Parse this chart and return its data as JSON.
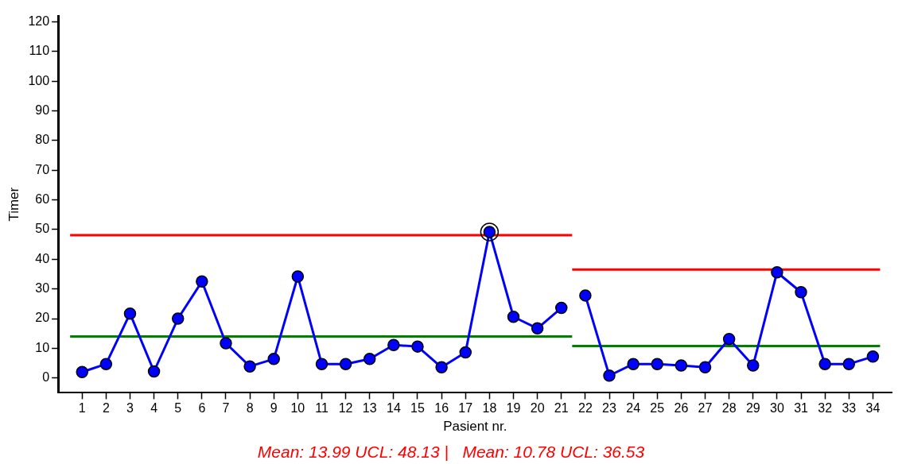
{
  "chart_data": {
    "type": "line",
    "xlabel": "Pasient nr.",
    "ylabel": "Timer",
    "xlim": [
      0,
      34.8
    ],
    "xticks": [
      1,
      2,
      3,
      4,
      5,
      6,
      7,
      8,
      9,
      10,
      11,
      12,
      13,
      14,
      15,
      16,
      17,
      18,
      19,
      20,
      21,
      22,
      23,
      24,
      25,
      26,
      27,
      28,
      29,
      30,
      31,
      32,
      33,
      34
    ],
    "ylim": [
      -5,
      122
    ],
    "yticks": [
      0,
      10,
      20,
      30,
      40,
      50,
      60,
      70,
      80,
      90,
      100,
      110,
      120
    ],
    "grid": false,
    "legend": false,
    "marker": "circle",
    "series": [
      {
        "color": "#0000ff",
        "x": [
          1,
          2,
          3,
          4,
          5,
          6,
          7,
          8,
          9,
          10,
          11,
          12,
          13,
          14,
          15,
          16,
          17,
          18,
          19,
          20,
          21
        ],
        "values": [
          2,
          4.7,
          21.7,
          2.2,
          20,
          32.5,
          11.7,
          3.9,
          6.4,
          34.2,
          4.7,
          4.7,
          6.4,
          11.1,
          10.6,
          3.6,
          8.6,
          49.2,
          20.6,
          16.7,
          23.6
        ]
      },
      {
        "color": "#0000ff",
        "x": [
          22,
          23,
          24,
          25,
          26,
          27,
          28,
          29,
          30,
          31,
          32,
          33,
          34
        ],
        "values": [
          27.8,
          0.8,
          4.7,
          4.7,
          4.2,
          3.6,
          13.1,
          4.2,
          35.6,
          28.9,
          4.7,
          4.7,
          7.2
        ]
      },
      {
        "type": "line",
        "color": "#ff0000",
        "marker": "none",
        "x": [
          0.5,
          21.45
        ],
        "values": [
          48.13,
          48.13
        ]
      },
      {
        "type": "line",
        "color": "#008000",
        "marker": "none",
        "x": [
          0.5,
          21.45
        ],
        "values": [
          13.99,
          13.99
        ]
      },
      {
        "type": "line",
        "color": "#ff0000",
        "marker": "none",
        "x": [
          21.45,
          34.3
        ],
        "values": [
          36.53,
          36.53
        ]
      },
      {
        "type": "line",
        "color": "#008000",
        "marker": "none",
        "x": [
          21.45,
          34.3
        ],
        "values": [
          10.78,
          10.78
        ]
      },
      {
        "type": "scatter",
        "color": "#000000",
        "marker": "circle",
        "x": [
          18
        ],
        "values": [
          49.2
        ]
      }
    ],
    "annotations": [
      "Mean: 13.99 UCL: 48.13 |   Mean: 10.78 UCL: 36.53"
    ]
  }
}
